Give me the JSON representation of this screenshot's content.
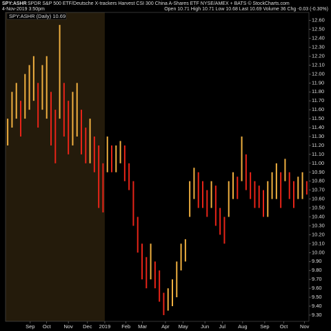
{
  "chart_data": {
    "type": "range_bar",
    "symbol": "SPY:ASHR",
    "title": "SPDR S&P 500 ETF/Deutsche X-trackers Harvest CSI 300 China A-Shares ETF NYSE/AMEX + BATS © StockCharts.com",
    "date": "4-Nov-2019 3:50pm",
    "quote": "Open 10.71 High 10.71 Low 10.68 Last 10.69 Volume 36 Chg -0.03 (-0.30%)",
    "legend": "SPY:ASHR (Daily) 10.69",
    "low": [
      11.2,
      11.4,
      11.5,
      11.3,
      11.5,
      11.6,
      11.7,
      11.4,
      11.6,
      11.5,
      11.2,
      11.0,
      11.5,
      11.3,
      11.1,
      11.2,
      11.3,
      11.1,
      11.0,
      11.0,
      10.9,
      10.5,
      10.45,
      10.9,
      10.9,
      10.9,
      11.0,
      10.8,
      10.7,
      10.3,
      10.0,
      9.7,
      9.6,
      9.7,
      9.6,
      9.45,
      9.3,
      9.35,
      9.4,
      9.5,
      9.8,
      9.9,
      10.4,
      10.6,
      10.5,
      10.5,
      10.4,
      10.5,
      10.3,
      10.2,
      10.1,
      10.4,
      10.6,
      10.6,
      10.8,
      10.7,
      10.6,
      10.5,
      10.5,
      10.4,
      10.4,
      10.6,
      10.6,
      10.5,
      10.8,
      10.6,
      10.5,
      10.6,
      10.6,
      10.65
    ],
    "high": [
      11.5,
      11.8,
      11.9,
      11.7,
      12.0,
      12.1,
      12.2,
      11.9,
      12.1,
      12.2,
      11.8,
      11.6,
      12.55,
      11.9,
      11.7,
      11.8,
      11.9,
      11.6,
      11.4,
      11.5,
      11.3,
      11.2,
      11.0,
      11.3,
      11.2,
      11.2,
      11.25,
      11.2,
      11.0,
      10.8,
      10.4,
      10.1,
      9.95,
      10.1,
      9.9,
      9.8,
      9.55,
      9.6,
      9.7,
      9.9,
      10.1,
      10.15,
      10.8,
      10.95,
      10.9,
      10.8,
      10.7,
      10.8,
      10.75,
      10.5,
      10.4,
      10.8,
      10.9,
      10.85,
      11.3,
      11.1,
      10.9,
      10.8,
      10.75,
      10.7,
      10.8,
      10.9,
      11.0,
      10.9,
      11.05,
      10.9,
      10.8,
      10.85,
      10.9,
      10.8
    ],
    "color_up": "#f0b040",
    "color_down": "#e82418",
    "shade_color": "#241b0b",
    "xlim": [
      0,
      70
    ],
    "shade_end": {
      "value": 22.9,
      "label": "2019"
    },
    "xticks": [
      {
        "value": 5.7,
        "label": "Sep"
      },
      {
        "value": 9.5,
        "label": "Oct"
      },
      {
        "value": 14.5,
        "label": "Nov"
      },
      {
        "value": 18.9,
        "label": "Dec"
      },
      {
        "value": 22.9,
        "label": "2019"
      },
      {
        "value": 27.8,
        "label": "Feb"
      },
      {
        "value": 31.6,
        "label": "Mar"
      },
      {
        "value": 36.9,
        "label": "Apr"
      },
      {
        "value": 41,
        "label": "May"
      },
      {
        "value": 46,
        "label": "Jun"
      },
      {
        "value": 50,
        "label": "Jul"
      },
      {
        "value": 54.7,
        "label": "Aug"
      },
      {
        "value": 59.8,
        "label": "Sep"
      },
      {
        "value": 64.2,
        "label": "Oct"
      },
      {
        "value": 69,
        "label": "Nov"
      }
    ],
    "ylim": [
      9.23,
      12.69
    ],
    "yticks": [
      {
        "value": 9.3,
        "label": "9.30"
      },
      {
        "value": 9.4,
        "label": "9.40"
      },
      {
        "value": 9.5,
        "label": "9.50"
      },
      {
        "value": 9.6,
        "label": "9.60"
      },
      {
        "value": 9.7,
        "label": "9.70"
      },
      {
        "value": 9.8,
        "label": "9.80"
      },
      {
        "value": 9.9,
        "label": "9.90"
      },
      {
        "value": 10,
        "label": "10.00"
      },
      {
        "value": 10.1,
        "label": "10.10"
      },
      {
        "value": 10.2,
        "label": "10.20"
      },
      {
        "value": 10.3,
        "label": "10.30"
      },
      {
        "value": 10.4,
        "label": "10.40"
      },
      {
        "value": 10.5,
        "label": "10.50"
      },
      {
        "value": 10.6,
        "label": "10.60"
      },
      {
        "value": 10.7,
        "label": "10.70"
      },
      {
        "value": 10.8,
        "label": "10.80"
      },
      {
        "value": 10.9,
        "label": "10.90"
      },
      {
        "value": 11,
        "label": "11.00"
      },
      {
        "value": 11.1,
        "label": "11.10"
      },
      {
        "value": 11.2,
        "label": "11.20"
      },
      {
        "value": 11.3,
        "label": "11.30"
      },
      {
        "value": 11.4,
        "label": "11.40"
      },
      {
        "value": 11.5,
        "label": "11.50"
      },
      {
        "value": 11.6,
        "label": "11.60"
      },
      {
        "value": 11.7,
        "label": "11.70"
      },
      {
        "value": 11.8,
        "label": "11.80"
      },
      {
        "value": 11.9,
        "label": "11.90"
      },
      {
        "value": 12,
        "label": "12.00"
      },
      {
        "value": 12.1,
        "label": "12.10"
      },
      {
        "value": 12.2,
        "label": "12.20"
      },
      {
        "value": 12.3,
        "label": "12.30"
      },
      {
        "value": 12.4,
        "label": "12.40"
      },
      {
        "value": 12.5,
        "label": "12.50"
      },
      {
        "value": 12.6,
        "label": "12.60"
      }
    ]
  }
}
